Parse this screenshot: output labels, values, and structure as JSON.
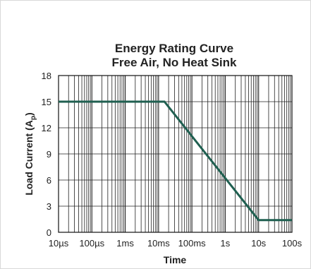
{
  "chart_data": {
    "type": "line",
    "title": "Energy Rating Curve",
    "subtitle": "Free Air, No Heat Sink",
    "xlabel": "Time",
    "ylabel": "Load Current (A",
    "ylabel_subscript": "p",
    "ylabel_suffix": ")",
    "x_scale": "log",
    "xlim": [
      "10µs",
      "100s"
    ],
    "ylim": [
      0,
      18
    ],
    "grid": true,
    "x_tick_labels": [
      "10µs",
      "100µs",
      "1ms",
      "10ms",
      "100ms",
      "1s",
      "10s",
      "100s"
    ],
    "y_tick_labels": [
      "0",
      "3",
      "6",
      "9",
      "12",
      "15",
      "18"
    ],
    "series": [
      {
        "color": "#1f5f50",
        "points": [
          {
            "x": "10µs",
            "y": 15
          },
          {
            "x": "15ms",
            "y": 15
          },
          {
            "x": "10s",
            "y": 1.4
          },
          {
            "x": "100s",
            "y": 1.4
          }
        ]
      }
    ]
  }
}
